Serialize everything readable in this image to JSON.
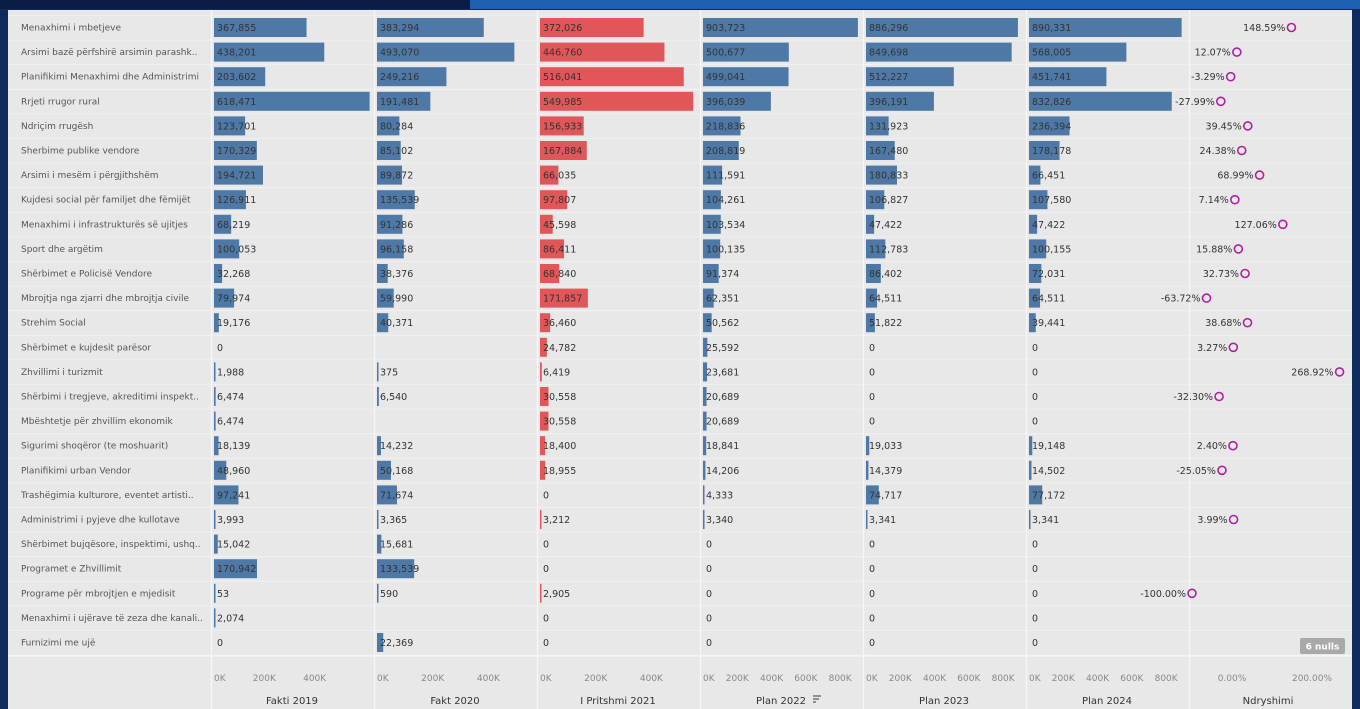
{
  "chart_data": {
    "type": "bar",
    "headers": [
      "Fakti 2019",
      "Fakt 2020",
      "I Pritshmi 2021",
      "Plan 2022",
      "Plan 2023",
      "Plan 2024",
      "Ndryshimi"
    ],
    "header_sort_icon": "sort-descending-icon",
    "categories": [
      "Menaxhimi i mbetjeve",
      "Arsimi bazë përfshirë arsimin parashk..",
      "Planifikimi Menaxhimi dhe Administrimi",
      "Rrjeti rrugor rural",
      "Ndriçim rrugësh",
      "Sherbime publike vendore",
      "Arsimi i mesëm i përgjithshëm",
      "Kujdesi social për familjet dhe fëmijët",
      "Menaxhimi i infrastrukturës së ujitjes",
      "Sport dhe argëtim",
      "Shërbimet e Policisë Vendore",
      "Mbrojtja nga zjarri dhe mbrojtja civile",
      "Strehim Social",
      "Shërbimet e kujdesit parësor",
      "Zhvillimi i turizmit",
      "Shërbimi i tregjeve, akreditimi inspekt..",
      "Mbështetje për zhvillim ekonomik",
      "Sigurimi shoqëror (te moshuarit)",
      "Planifikimi urban Vendor",
      "Trashëgimia kulturore, eventet artisti..",
      "Administrimi i pyjeve dhe kullotave",
      "Shërbimet bujqësore, inspektimi, ushq..",
      "Programet e Zhvillimit",
      "Programe për mbrojtjen e mjedisit",
      "Menaxhimi i ujërave të zeza dhe kanali..",
      "Furnizimi me ujë"
    ],
    "series": [
      {
        "name": "Fakti 2019",
        "color": "#4e79a7",
        "values": [
          367855,
          438201,
          203602,
          618471,
          123701,
          170329,
          194721,
          126911,
          68219,
          100053,
          32268,
          79974,
          19176,
          0,
          1988,
          6474,
          6474,
          18139,
          48960,
          97241,
          3993,
          15042,
          170942,
          53,
          2074,
          0
        ],
        "labels": [
          "367,855",
          "438,201",
          "203,602",
          "618,471",
          "123,701",
          "170,329",
          "194,721",
          "126,911",
          "68,219",
          "100,053",
          "32,268",
          "79,974",
          "19,176",
          "0",
          "1,988",
          "6,474",
          "6,474",
          "18,139",
          "48,960",
          "97,241",
          "3,993",
          "15,042",
          "170,942",
          "53",
          "2,074",
          "0"
        ]
      },
      {
        "name": "Fakt 2020",
        "color": "#4e79a7",
        "values": [
          383294,
          493070,
          249216,
          191481,
          80284,
          85102,
          89872,
          135539,
          91286,
          96158,
          38376,
          59990,
          40371,
          null,
          375,
          6540,
          null,
          14232,
          50168,
          71674,
          3365,
          15681,
          133539,
          590,
          null,
          22369
        ],
        "labels": [
          "383,294",
          "493,070",
          "249,216",
          "191,481",
          "80,284",
          "85,102",
          "89,872",
          "135,539",
          "91,286",
          "96,158",
          "38,376",
          "59,990",
          "40,371",
          "",
          "375",
          "6,540",
          "",
          "14,232",
          "50,168",
          "71,674",
          "3,365",
          "15,681",
          "133,539",
          "590",
          "",
          "22,369"
        ]
      },
      {
        "name": "I Pritshmi 2021",
        "color": "#e15759",
        "values": [
          372026,
          446760,
          516041,
          549985,
          156933,
          167884,
          66035,
          97807,
          45598,
          86411,
          68840,
          171857,
          36460,
          24782,
          6419,
          30558,
          30558,
          18400,
          18955,
          0,
          3212,
          0,
          0,
          2905,
          0,
          0
        ],
        "labels": [
          "372,026",
          "446,760",
          "516,041",
          "549,985",
          "156,933",
          "167,884",
          "66,035",
          "97,807",
          "45,598",
          "86,411",
          "68,840",
          "171,857",
          "36,460",
          "24,782",
          "6,419",
          "30,558",
          "30,558",
          "18,400",
          "18,955",
          "0",
          "3,212",
          "0",
          "0",
          "2,905",
          "0",
          "0"
        ]
      },
      {
        "name": "Plan 2022",
        "color": "#4e79a7",
        "values": [
          903723,
          500677,
          499041,
          396039,
          218836,
          208819,
          111591,
          104261,
          103534,
          100135,
          91374,
          62351,
          50562,
          25592,
          23681,
          20689,
          20689,
          18841,
          14206,
          4333,
          3340,
          0,
          0,
          0,
          0,
          0
        ],
        "labels": [
          "903,723",
          "500,677",
          "499,041",
          "396,039",
          "218,836",
          "208,819",
          "111,591",
          "104,261",
          "103,534",
          "100,135",
          "91,374",
          "62,351",
          "50,562",
          "25,592",
          "23,681",
          "20,689",
          "20,689",
          "18,841",
          "14,206",
          "4,333",
          "3,340",
          "0",
          "0",
          "0",
          "0",
          "0"
        ]
      },
      {
        "name": "Plan 2023",
        "color": "#4e79a7",
        "values": [
          886296,
          849698,
          512227,
          396191,
          131923,
          167480,
          180833,
          106827,
          47422,
          112783,
          86402,
          64511,
          51822,
          0,
          0,
          0,
          0,
          19033,
          14379,
          74717,
          3341,
          0,
          0,
          0,
          0,
          0
        ],
        "labels": [
          "886,296",
          "849,698",
          "512,227",
          "396,191",
          "131,923",
          "167,480",
          "180,833",
          "106,827",
          "47,422",
          "112,783",
          "86,402",
          "64,511",
          "51,822",
          "0",
          "0",
          "0",
          "0",
          "19,033",
          "14,379",
          "74,717",
          "3,341",
          "0",
          "0",
          "0",
          "0",
          "0"
        ]
      },
      {
        "name": "Plan 2024",
        "color": "#4e79a7",
        "values": [
          890331,
          568005,
          451741,
          832826,
          236394,
          178178,
          66451,
          107580,
          47422,
          100155,
          72031,
          64511,
          39441,
          0,
          0,
          0,
          0,
          19148,
          14502,
          77172,
          3341,
          0,
          0,
          0,
          0,
          0
        ],
        "labels": [
          "890,331",
          "568,005",
          "451,741",
          "832,826",
          "236,394",
          "178,178",
          "66,451",
          "107,580",
          "47,422",
          "100,155",
          "72,031",
          "64,511",
          "39,441",
          "0",
          "0",
          "0",
          "0",
          "19,148",
          "14,502",
          "77,172",
          "3,341",
          "0",
          "0",
          "0",
          "0",
          "0"
        ]
      },
      {
        "name": "Ndryshimi",
        "color": "#b0209e",
        "values": [
          148.59,
          12.07,
          -3.29,
          -27.99,
          39.45,
          24.38,
          68.99,
          7.14,
          127.06,
          15.88,
          32.73,
          -63.72,
          38.68,
          3.27,
          268.92,
          -32.3,
          null,
          2.4,
          -25.05,
          null,
          3.99,
          null,
          null,
          -100.0,
          null,
          null
        ],
        "labels": [
          "148.59%",
          "12.07%",
          "-3.29%",
          "-27.99%",
          "39.45%",
          "24.38%",
          "68.99%",
          "7.14%",
          "127.06%",
          "15.88%",
          "32.73%",
          "-63.72%",
          "38.68%",
          "3.27%",
          "268.92%",
          "-32.30%",
          "",
          "2.40%",
          "-25.05%",
          "",
          "3.99%",
          "",
          "",
          "-100.00%",
          "",
          ""
        ]
      }
    ],
    "axes": [
      {
        "ticks": [
          "0K",
          "200K",
          "400K"
        ],
        "values": [
          0,
          200000,
          400000
        ],
        "max": 620000
      },
      {
        "ticks": [
          "0K",
          "200K",
          "400K"
        ],
        "values": [
          0,
          200000,
          400000
        ],
        "max": 560000
      },
      {
        "ticks": [
          "0K",
          "200K",
          "400K"
        ],
        "values": [
          0,
          200000,
          400000
        ],
        "max": 560000
      },
      {
        "ticks": [
          "0K",
          "200K",
          "400K",
          "600K",
          "800K"
        ],
        "values": [
          0,
          200000,
          400000,
          600000,
          800000
        ],
        "max": 910000
      },
      {
        "ticks": [
          "0K",
          "200K",
          "400K",
          "600K",
          "800K"
        ],
        "values": [
          0,
          200000,
          400000,
          600000,
          800000
        ],
        "max": 910000
      },
      {
        "ticks": [
          "0K",
          "200K",
          "400K",
          "600K",
          "800K"
        ],
        "values": [
          0,
          200000,
          400000,
          600000,
          800000
        ],
        "max": 910000
      },
      {
        "ticks": [
          "0.00%",
          "200.00%"
        ],
        "values": [
          0,
          200
        ],
        "min": -100,
        "max": 280
      }
    ],
    "nulls_badge": "6 nulls",
    "grid": false
  }
}
